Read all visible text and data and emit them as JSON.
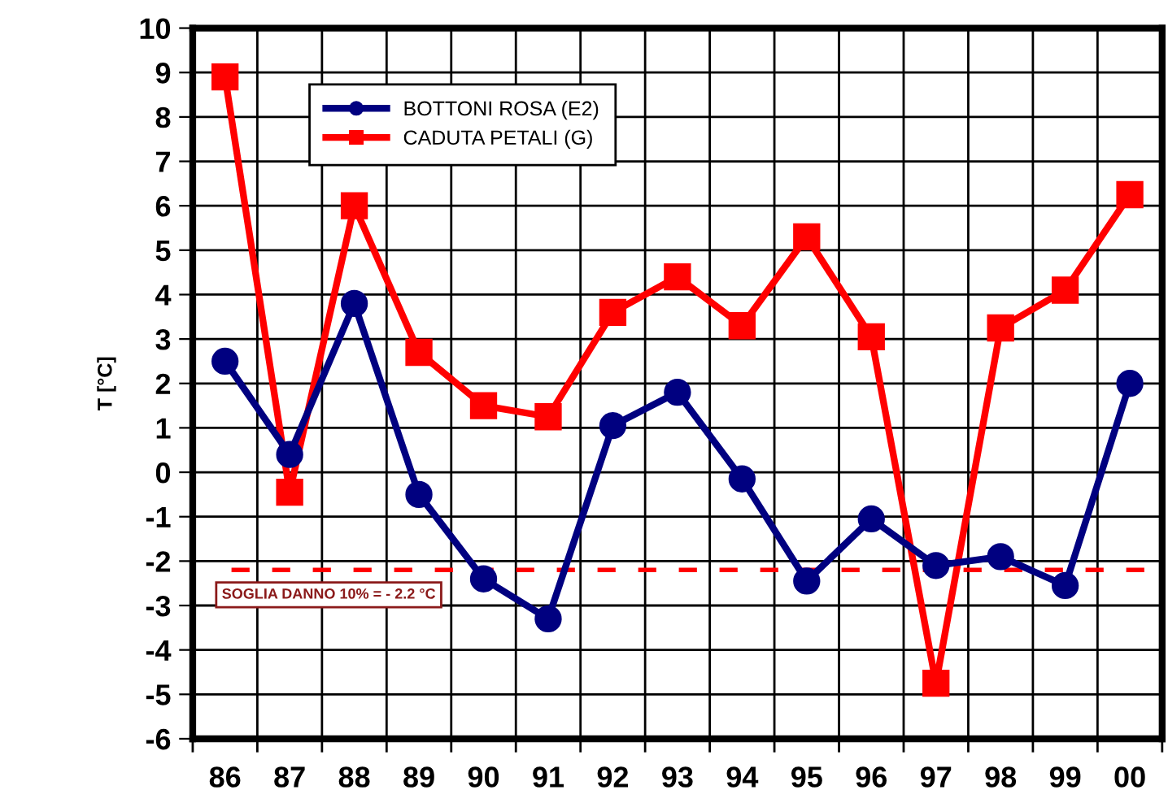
{
  "chart_data": {
    "type": "line",
    "ylabel": "T [°C]",
    "categories": [
      "86",
      "87",
      "88",
      "89",
      "90",
      "91",
      "92",
      "93",
      "94",
      "95",
      "96",
      "97",
      "98",
      "99",
      "00"
    ],
    "series": [
      {
        "name": "BOTTONI ROSA (E2)",
        "color": "#000080",
        "marker": "circle",
        "values": [
          2.5,
          0.4,
          3.8,
          -0.5,
          -2.4,
          -3.3,
          1.05,
          1.8,
          -0.15,
          -2.45,
          -1.05,
          -2.1,
          -1.9,
          -2.55,
          2.0
        ]
      },
      {
        "name": "CADUTA PETALI (G)",
        "color": "#ff0000",
        "marker": "square",
        "values": [
          8.9,
          -0.45,
          6.0,
          2.7,
          1.5,
          1.25,
          3.6,
          4.4,
          3.3,
          5.3,
          3.05,
          -4.75,
          3.25,
          4.1,
          6.25
        ]
      }
    ],
    "ylim": [
      -6,
      10
    ],
    "yticks": [
      -6,
      -5,
      -4,
      -3,
      -2,
      -1,
      0,
      1,
      2,
      3,
      4,
      5,
      6,
      7,
      8,
      9,
      10
    ],
    "ref_lines": [
      {
        "axis": "y",
        "value": -2.2,
        "label": "SOGLIA DANNO 10% = - 2.2 °C",
        "color": "#ff0000",
        "line_style": "dashed"
      }
    ],
    "grid": true,
    "legend": "top left",
    "line_style": "solid"
  }
}
